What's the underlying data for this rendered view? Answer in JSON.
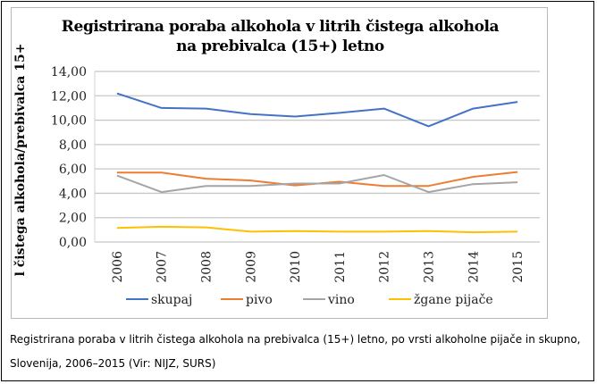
{
  "chart_data": {
    "type": "line",
    "title": "Registrirana poraba alkohola v litrih čistega alkohola na prebivalca (15+) letno",
    "title_lines": [
      "Registrirana poraba alkohola v litrih čistega alkohola",
      "na prebivalca (15+) letno"
    ],
    "xlabel": "",
    "ylabel": "l čistega alkohola/prebivalca 15+",
    "ylim": [
      0,
      14
    ],
    "yticks": [
      "0,00",
      "2,00",
      "4,00",
      "6,00",
      "8,00",
      "10,00",
      "12,00",
      "14,00"
    ],
    "ytick_values": [
      0,
      2,
      4,
      6,
      8,
      10,
      12,
      14
    ],
    "grid": true,
    "legend_position": "bottom",
    "categories": [
      "2006",
      "2007",
      "2008",
      "2009",
      "2010",
      "2011",
      "2012",
      "2013",
      "2014",
      "2015"
    ],
    "series": [
      {
        "name": "skupaj",
        "color": "#4472C4",
        "values": [
          12.2,
          11.0,
          10.95,
          10.5,
          10.3,
          10.6,
          10.95,
          9.5,
          10.95,
          11.5
        ]
      },
      {
        "name": "pivo",
        "color": "#ED7D31",
        "values": [
          5.7,
          5.7,
          5.2,
          5.05,
          4.65,
          4.95,
          4.6,
          4.6,
          5.35,
          5.75
        ]
      },
      {
        "name": "vino",
        "color": "#A5A5A5",
        "values": [
          5.45,
          4.1,
          4.6,
          4.6,
          4.8,
          4.8,
          5.5,
          4.1,
          4.75,
          4.9
        ]
      },
      {
        "name": "žgane pijače",
        "color": "#FFC000",
        "values": [
          1.15,
          1.25,
          1.2,
          0.85,
          0.9,
          0.85,
          0.85,
          0.9,
          0.8,
          0.85
        ]
      }
    ]
  },
  "caption": {
    "line1": "Registrirana poraba v litrih čistega alkohola na prebivalca (15+) letno, po vrsti alkoholne pijače in skupno,",
    "line2": "Slovenija, 2006–2015 (Vir: NIJZ, SURS)"
  }
}
